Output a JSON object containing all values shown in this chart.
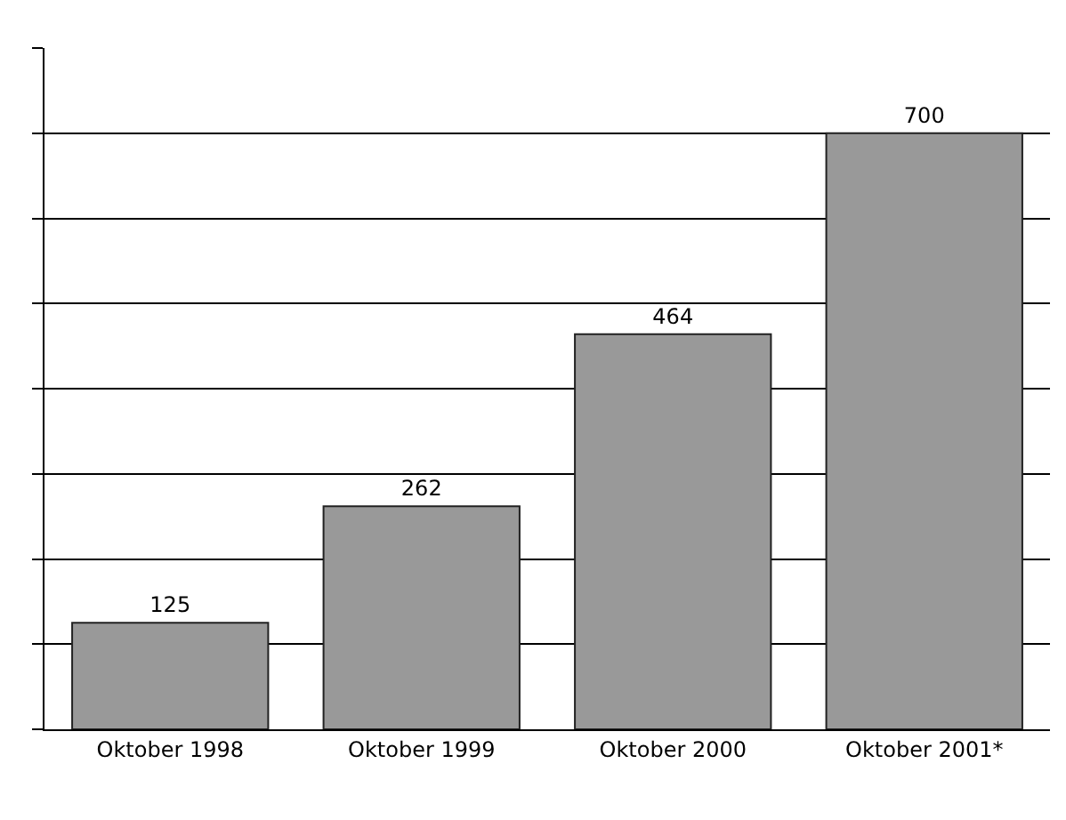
{
  "chart_data": {
    "type": "bar",
    "categories": [
      "Oktober 1998",
      "Oktober 1999",
      "Oktober 2000",
      "Oktober 2001*"
    ],
    "values": [
      125,
      262,
      464,
      700
    ],
    "color": "#999999",
    "data_labels": true,
    "ylim": [
      0,
      800
    ],
    "yticks": [
      {
        "value": 0,
        "label": null
      },
      {
        "value": 100,
        "label": null
      },
      {
        "value": 200,
        "label": null
      },
      {
        "value": 300,
        "label": null
      },
      {
        "value": 400,
        "label": null
      },
      {
        "value": 500,
        "label": null
      },
      {
        "value": 600,
        "label": null
      },
      {
        "value": 700,
        "label": null
      },
      {
        "value": 800,
        "label": null
      }
    ],
    "tick_labels": "x",
    "grid": "y"
  }
}
